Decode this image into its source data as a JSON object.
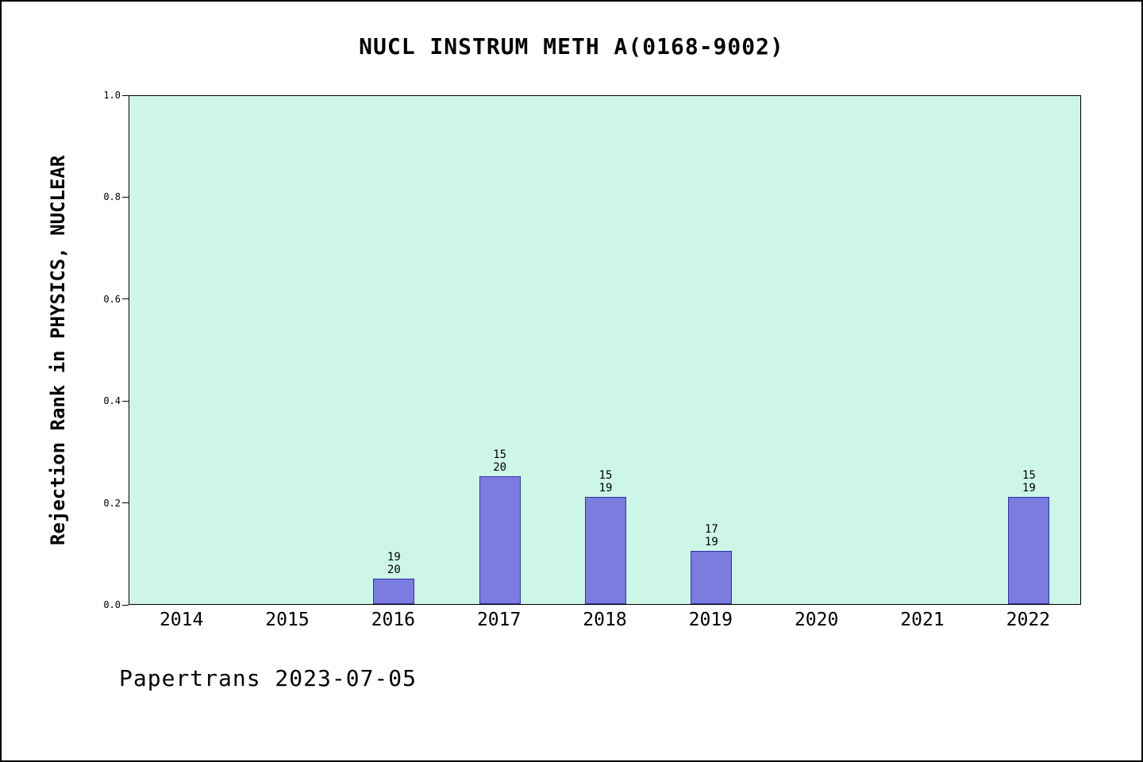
{
  "footer": "Papertrans 2023-07-05",
  "chart_data": {
    "type": "bar",
    "title": "NUCL INSTRUM METH A(0168-9002)",
    "ylabel": "Rejection Rank in PHYSICS, NUCLEAR",
    "xlabel": "",
    "ylim": [
      0,
      1
    ],
    "grid": false,
    "legend_position": "none",
    "yticks": [
      0.0,
      0.2,
      0.4,
      0.6,
      0.8,
      1.0
    ],
    "ytick_labels": [
      "0.0",
      "0.2",
      "0.4",
      "0.6",
      "0.8",
      "1.0"
    ],
    "categories": [
      "2014",
      "2015",
      "2016",
      "2017",
      "2018",
      "2019",
      "2020",
      "2021",
      "2022"
    ],
    "values": [
      null,
      null,
      0.05,
      0.25,
      0.21,
      0.105,
      null,
      null,
      0.21
    ],
    "bar_labels": [
      null,
      null,
      {
        "top": "19",
        "bottom": "20"
      },
      {
        "top": "15",
        "bottom": "20"
      },
      {
        "top": "15",
        "bottom": "19"
      },
      {
        "top": "17",
        "bottom": "19"
      },
      null,
      null,
      {
        "top": "15",
        "bottom": "19"
      }
    ],
    "colors": {
      "plot_bg": "#cdf6e7",
      "bar_fill": "#7b7be0",
      "bar_edge": "#3333aa",
      "frame": "#000000"
    }
  }
}
